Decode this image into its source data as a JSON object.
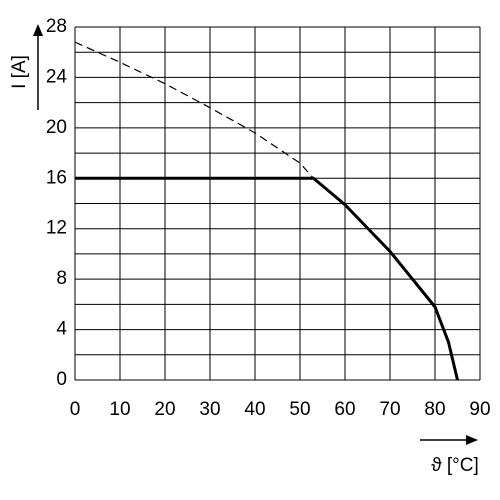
{
  "chart_data": {
    "type": "line",
    "y_label": "I [A]",
    "x_label": "ϑ [°C]",
    "xlim": [
      0,
      90
    ],
    "xticks": [
      0,
      10,
      20,
      30,
      40,
      50,
      60,
      70,
      80,
      90
    ],
    "ylim": [
      0,
      28
    ],
    "yticks": [
      0,
      4,
      8,
      12,
      16,
      20,
      24,
      28
    ],
    "minor_yticks": [
      2,
      6,
      10,
      14,
      18,
      22,
      26
    ],
    "grid": true,
    "series": [
      {
        "color": "#000000",
        "style": "dashed",
        "x": [
          0,
          10,
          20,
          30,
          40,
          50,
          53
        ],
        "values": [
          26.8,
          25.2,
          23.5,
          21.6,
          19.6,
          17.2,
          16
        ]
      },
      {
        "color": "#000000",
        "style": "solid",
        "x": [
          0,
          53,
          60,
          70,
          80,
          83,
          85
        ],
        "values": [
          16,
          16,
          13.9,
          10.2,
          5.8,
          3,
          0
        ]
      }
    ]
  }
}
